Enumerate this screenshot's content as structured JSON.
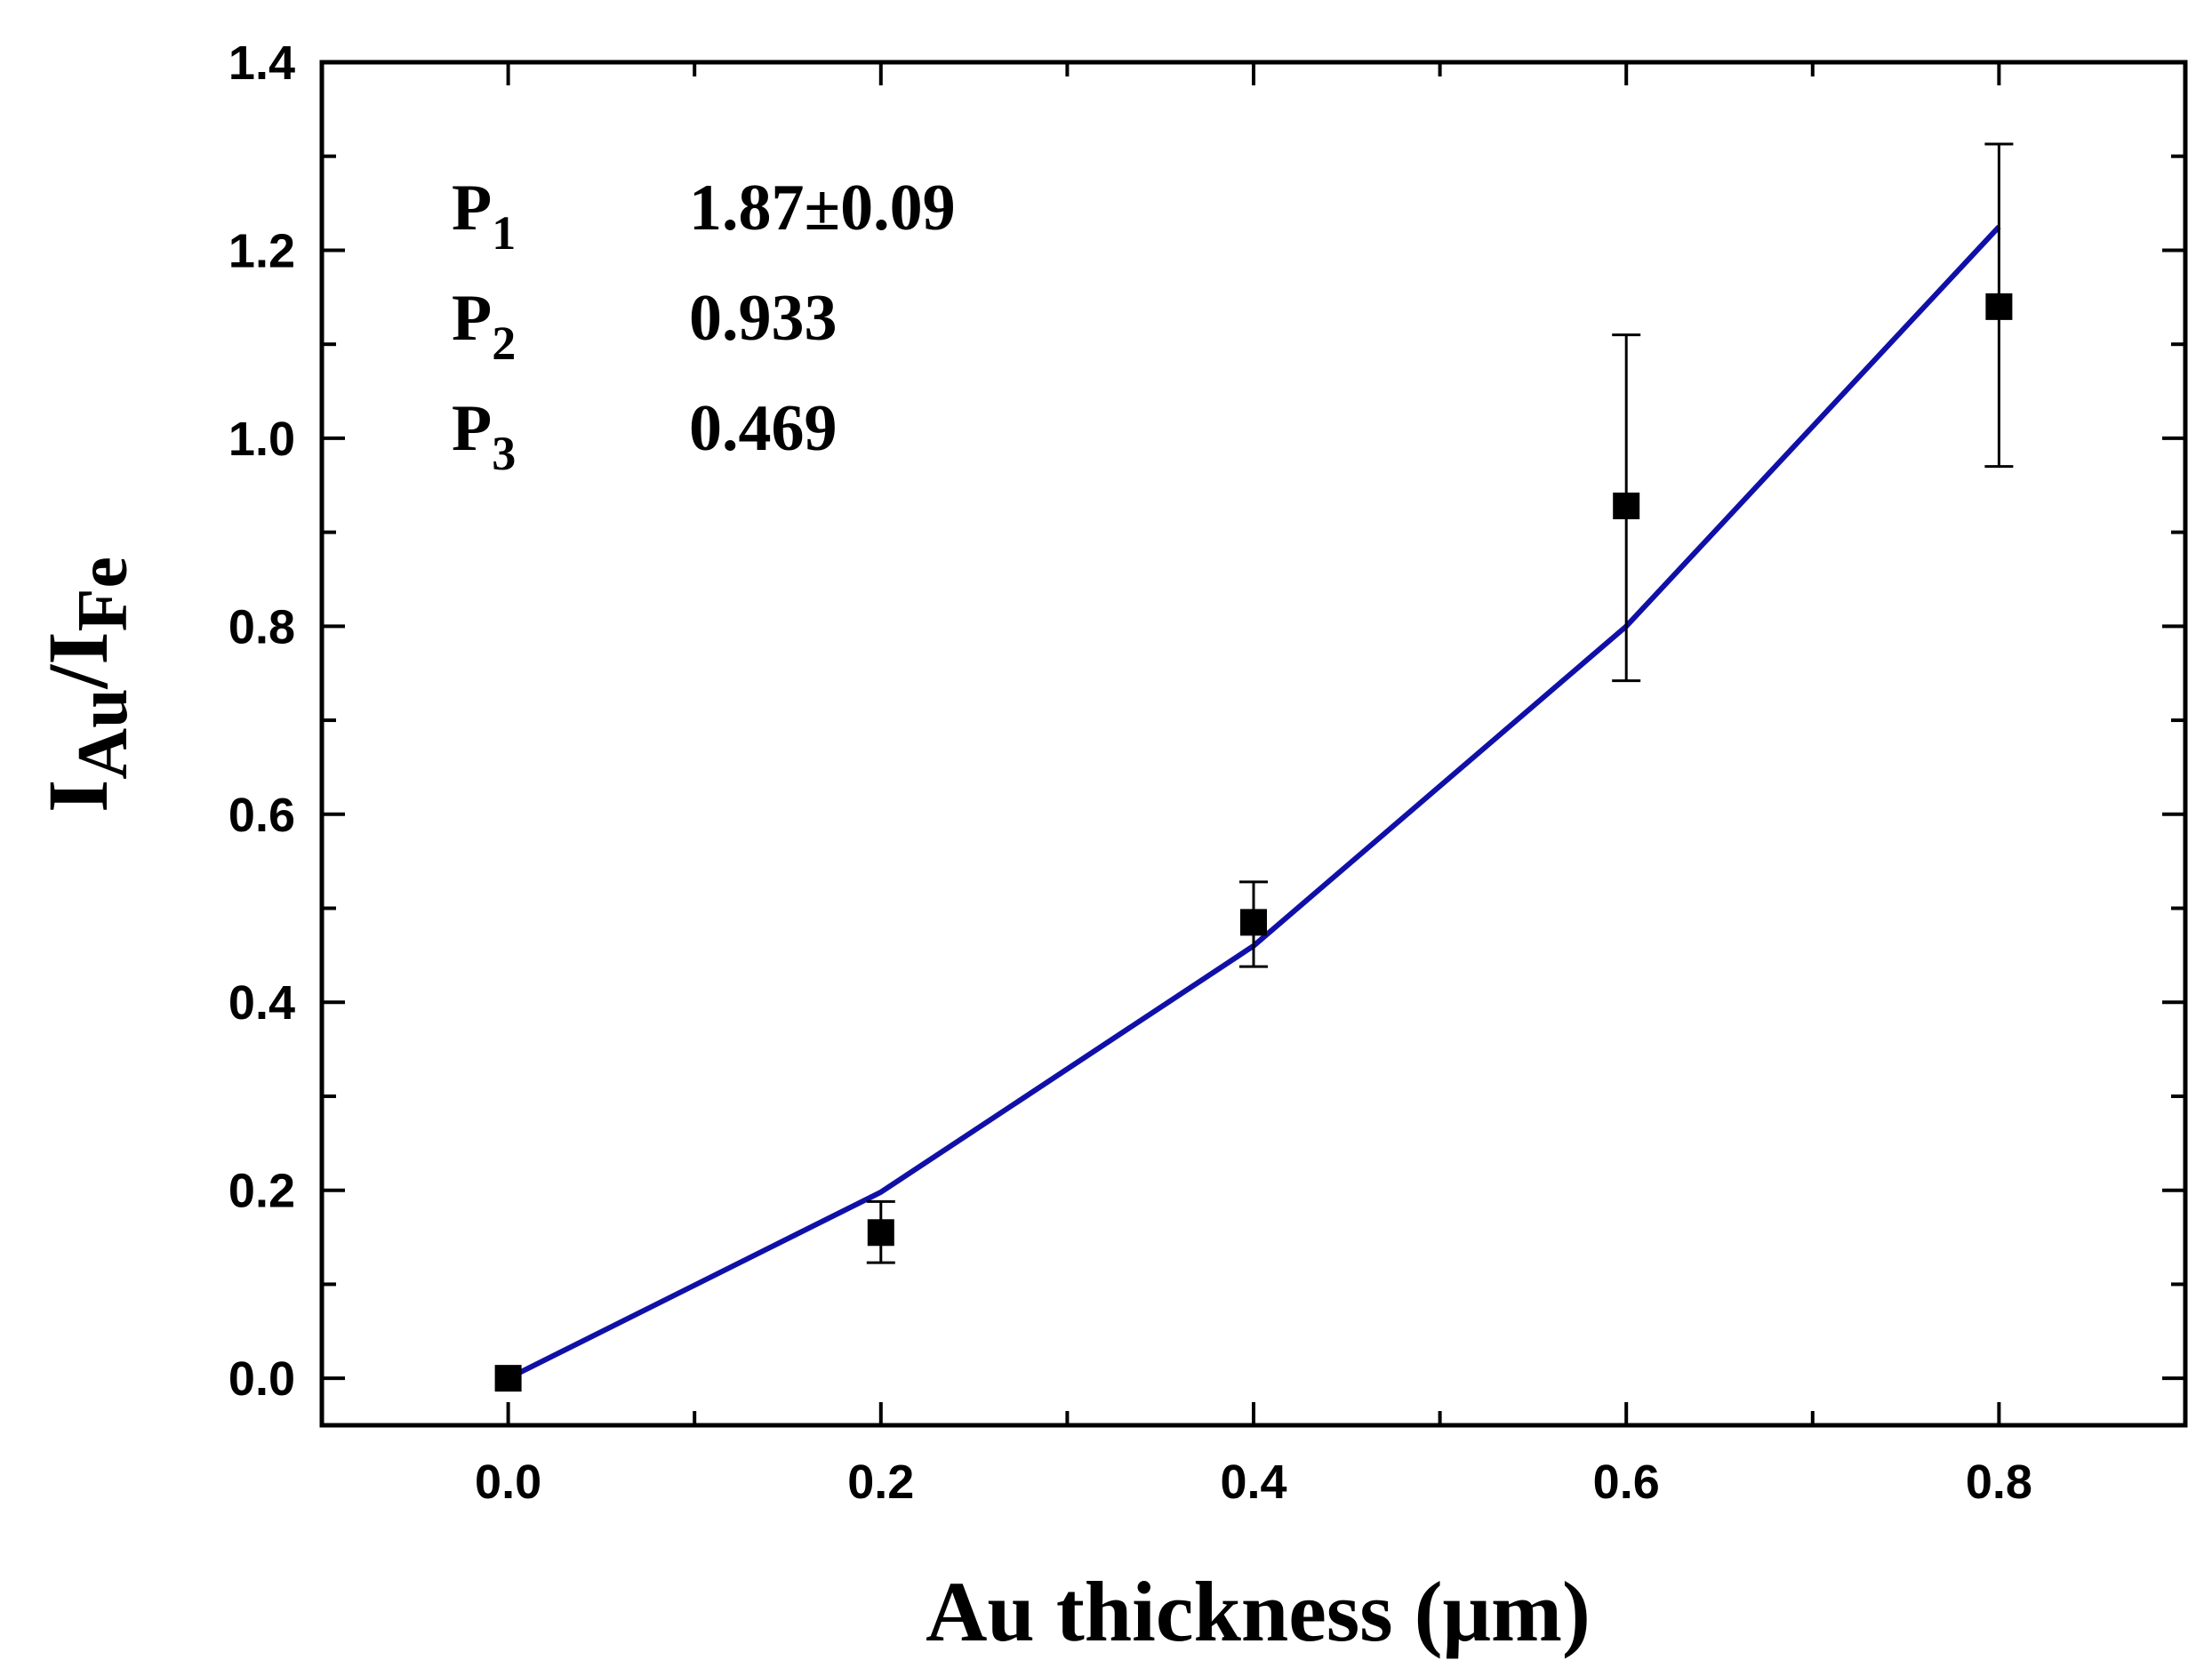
{
  "chart_data": {
    "type": "scatter",
    "title": "",
    "xlabel": "Au thickness (μm)",
    "ylabel": {
      "main": "I",
      "sub1": "Au",
      "sep": "/I",
      "sub2": "Fe"
    },
    "xlim": [
      -0.1,
      0.9
    ],
    "ylim": [
      -0.05,
      1.4
    ],
    "x_ticks": [
      "0.0",
      "0.2",
      "0.4",
      "0.6",
      "0.8"
    ],
    "x_tick_values": [
      0.0,
      0.2,
      0.4,
      0.6,
      0.8
    ],
    "y_ticks": [
      "0.0",
      "0.2",
      "0.4",
      "0.6",
      "0.8",
      "1.0",
      "1.2",
      "1.4"
    ],
    "y_tick_values": [
      0.0,
      0.2,
      0.4,
      0.6,
      0.8,
      1.0,
      1.2,
      1.4
    ],
    "series": [
      {
        "name": "data",
        "kind": "markers",
        "color": "#000000",
        "x": [
          0.0,
          0.2,
          0.4,
          0.6,
          0.8
        ],
        "y": [
          0.0,
          0.155,
          0.485,
          0.928,
          1.14
        ],
        "err_low": [
          0.0,
          0.123,
          0.438,
          0.742,
          0.97
        ],
        "err_high": [
          0.0,
          0.188,
          0.528,
          1.11,
          1.313
        ]
      },
      {
        "name": "fit",
        "kind": "line",
        "color": "#1010a8",
        "x": [
          0.0,
          0.2,
          0.4,
          0.6,
          0.8
        ],
        "y": [
          0.0,
          0.198,
          0.46,
          0.8,
          1.225
        ]
      }
    ],
    "annotations": [
      {
        "label": "P",
        "sub": "1",
        "value": "1.87±0.09"
      },
      {
        "label": "P",
        "sub": "2",
        "value": "0.933"
      },
      {
        "label": "P",
        "sub": "3",
        "value": "0.469"
      }
    ]
  }
}
